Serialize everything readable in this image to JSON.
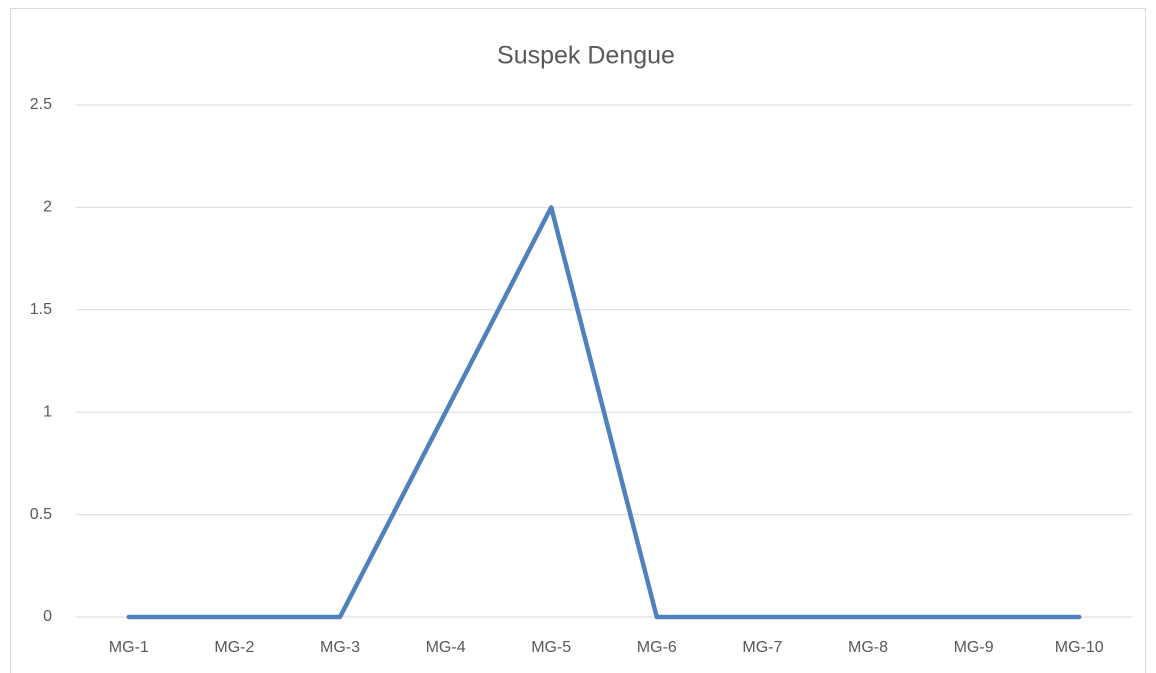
{
  "chart_data": {
    "type": "line",
    "title": "Suspek Dengue",
    "categories": [
      "MG-1",
      "MG-2",
      "MG-3",
      "MG-4",
      "MG-5",
      "MG-6",
      "MG-7",
      "MG-8",
      "MG-9",
      "MG-10"
    ],
    "values": [
      0,
      0,
      0,
      1,
      2,
      0,
      0,
      0,
      0,
      0
    ],
    "color": "#4f81bd",
    "ylim": [
      0,
      2.5
    ],
    "yticks": [
      0,
      0.5,
      1,
      1.5,
      2,
      2.5
    ],
    "grid": true
  }
}
